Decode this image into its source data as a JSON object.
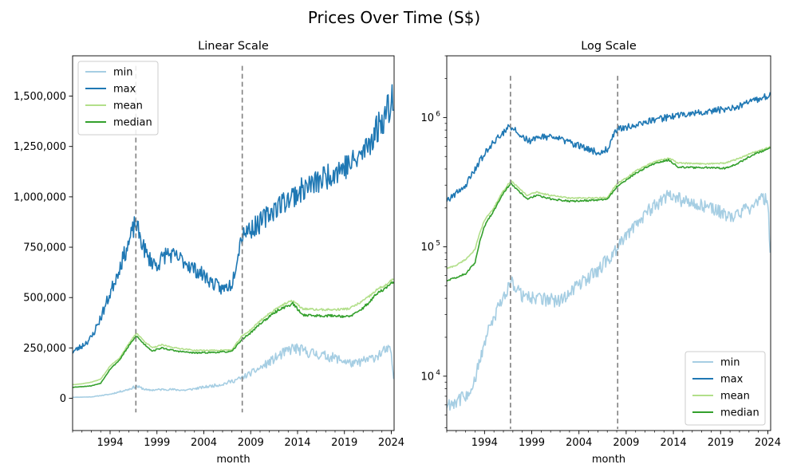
{
  "figure": {
    "suptitle": "Prices Over Time (S$)"
  },
  "colors": {
    "min": "#a6cee3",
    "max": "#1f78b4",
    "mean": "#b2df8a",
    "median": "#33a02c",
    "vline": "#808080"
  },
  "chart_data": [
    {
      "type": "line",
      "title": "Linear Scale",
      "xlabel": "month",
      "ylabel": "",
      "yscale": "linear",
      "xlim": [
        1990.0,
        2024.3
      ],
      "ylim": [
        -160000,
        1700000
      ],
      "xticks": [
        1994,
        1999,
        2004,
        2009,
        2014,
        2019,
        2024
      ],
      "xtick_labels": [
        "1994",
        "1999",
        "2004",
        "2009",
        "2014",
        "2019",
        "2024"
      ],
      "yticks": [
        0,
        250000,
        500000,
        750000,
        1000000,
        1250000,
        1500000
      ],
      "ytick_labels": [
        "0",
        "250,000",
        "500,000",
        "750,000",
        "1,000,000",
        "1,250,000",
        "1,500,000"
      ],
      "vlines": [
        {
          "x": 1996.75,
          "ymin": -70000,
          "ymax": 1650000
        },
        {
          "x": 2008.1,
          "ymin": -70000,
          "ymax": 1650000
        }
      ],
      "legend": {
        "position": "top-left"
      },
      "series": [
        {
          "name": "min",
          "key": "min",
          "x": [
            1990,
            1992,
            1994,
            1996,
            1996.8,
            1998,
            2000,
            2002,
            2004,
            2006,
            2008,
            2010,
            2012,
            2013.5,
            2015,
            2018,
            2020,
            2022,
            2023.5,
            2024.0,
            2024.2
          ],
          "y": [
            5000,
            7000,
            20000,
            45000,
            60000,
            40000,
            45000,
            40000,
            55000,
            70000,
            100000,
            150000,
            210000,
            250000,
            230000,
            200000,
            170000,
            200000,
            240000,
            230000,
            100000
          ]
        },
        {
          "name": "max",
          "key": "max",
          "x": [
            1990,
            1991,
            1992,
            1993,
            1994,
            1995,
            1996,
            1996.7,
            1997.5,
            1998,
            1999,
            2000,
            2001,
            2002,
            2003,
            2004,
            2005,
            2006,
            2007,
            2007.8,
            2008.2,
            2009,
            2010,
            2011,
            2012,
            2013,
            2014,
            2015,
            2016,
            2017,
            2018,
            2019,
            2020,
            2021,
            2022,
            2023,
            2023.8,
            2024.2
          ],
          "y": [
            230000,
            260000,
            300000,
            400000,
            520000,
            650000,
            770000,
            870000,
            760000,
            700000,
            660000,
            720000,
            700000,
            680000,
            640000,
            610000,
            570000,
            540000,
            570000,
            760000,
            830000,
            840000,
            870000,
            920000,
            960000,
            990000,
            1020000,
            1050000,
            1070000,
            1100000,
            1130000,
            1150000,
            1170000,
            1220000,
            1300000,
            1380000,
            1450000,
            1520000
          ]
        },
        {
          "name": "mean",
          "key": "mean",
          "x": [
            1990,
            1991,
            1992,
            1993,
            1994,
            1995,
            1996,
            1996.8,
            1997.5,
            1998.5,
            1999.5,
            2001,
            2003,
            2005,
            2007,
            2008,
            2009,
            2010,
            2011,
            2012,
            2013,
            2013.5,
            2014.5,
            2016,
            2018,
            2019.5,
            2020.5,
            2021.5,
            2022.5,
            2023.5,
            2024.2
          ],
          "y": [
            68000,
            72000,
            80000,
            95000,
            160000,
            200000,
            270000,
            325000,
            290000,
            250000,
            265000,
            250000,
            238000,
            238000,
            240000,
            305000,
            340000,
            385000,
            420000,
            455000,
            475000,
            485000,
            445000,
            440000,
            440000,
            445000,
            470000,
            500000,
            540000,
            565000,
            590000
          ]
        },
        {
          "name": "median",
          "key": "median",
          "x": [
            1990,
            1991,
            1992,
            1993,
            1994,
            1995,
            1996,
            1996.8,
            1997.5,
            1998.5,
            1999.5,
            2001,
            2003,
            2005,
            2007,
            2008,
            2009,
            2010,
            2011,
            2012,
            2013,
            2013.5,
            2014.5,
            2016,
            2018,
            2019.5,
            2020.5,
            2021.5,
            2022.5,
            2023.5,
            2024.2
          ],
          "y": [
            55000,
            58000,
            62000,
            75000,
            145000,
            190000,
            260000,
            310000,
            275000,
            235000,
            250000,
            235000,
            225000,
            228000,
            232000,
            290000,
            325000,
            370000,
            405000,
            440000,
            460000,
            470000,
            415000,
            410000,
            410000,
            405000,
            430000,
            470000,
            520000,
            550000,
            575000
          ]
        }
      ]
    },
    {
      "type": "line",
      "title": "Log Scale",
      "xlabel": "month",
      "ylabel": "",
      "yscale": "log",
      "xlim": [
        1990.0,
        2024.3
      ],
      "ylim": [
        3800,
        3000000
      ],
      "xticks": [
        1994,
        1999,
        2004,
        2009,
        2014,
        2019,
        2024
      ],
      "xtick_labels": [
        "1994",
        "1999",
        "2004",
        "2009",
        "2014",
        "2019",
        "2024"
      ],
      "yticks": [
        10000,
        100000,
        1000000
      ],
      "ytick_labels": [
        "10",
        "10",
        "10"
      ],
      "ytick_exponents": [
        "4",
        "5",
        "6"
      ],
      "vlines": [
        {
          "x": 1996.75,
          "ymin": 3900,
          "ymax": 2100000
        },
        {
          "x": 2008.1,
          "ymin": 3900,
          "ymax": 2100000
        }
      ],
      "legend": {
        "position": "lower-right"
      },
      "series": [
        {
          "name": "min",
          "key": "min",
          "x": [
            1990,
            1991,
            1992,
            1993,
            1994,
            1995,
            1996,
            1996.8,
            1998,
            2000,
            2002,
            2004,
            2006,
            2008,
            2010,
            2012,
            2013.5,
            2015,
            2018,
            2020,
            2022,
            2023.5,
            2024.0,
            2024.2
          ],
          "y": [
            6000,
            6500,
            7000,
            9000,
            18000,
            28000,
            40000,
            55000,
            42000,
            40000,
            38000,
            52000,
            65000,
            95000,
            150000,
            210000,
            250000,
            230000,
            200000,
            170000,
            200000,
            240000,
            230000,
            100000
          ]
        },
        {
          "name": "max",
          "key": "max",
          "x": [
            1990,
            1991,
            1992,
            1993,
            1994,
            1995,
            1996,
            1996.7,
            1997.5,
            1998,
            1999,
            2000,
            2001,
            2002,
            2003,
            2004,
            2005,
            2006,
            2007,
            2007.8,
            2008.2,
            2009,
            2010,
            2011,
            2012,
            2013,
            2014,
            2015,
            2016,
            2017,
            2018,
            2019,
            2020,
            2021,
            2022,
            2023,
            2023.8,
            2024.2
          ],
          "y": [
            230000,
            260000,
            300000,
            400000,
            520000,
            650000,
            770000,
            870000,
            760000,
            700000,
            660000,
            720000,
            700000,
            680000,
            640000,
            610000,
            570000,
            540000,
            570000,
            760000,
            830000,
            840000,
            870000,
            920000,
            960000,
            990000,
            1020000,
            1050000,
            1070000,
            1100000,
            1130000,
            1150000,
            1170000,
            1220000,
            1300000,
            1380000,
            1450000,
            1520000
          ]
        },
        {
          "name": "mean",
          "key": "mean",
          "x": [
            1990,
            1991,
            1992,
            1993,
            1994,
            1995,
            1996,
            1996.8,
            1997.5,
            1998.5,
            1999.5,
            2001,
            2003,
            2005,
            2007,
            2008,
            2009,
            2010,
            2011,
            2012,
            2013,
            2013.5,
            2014.5,
            2016,
            2018,
            2019.5,
            2020.5,
            2021.5,
            2022.5,
            2023.5,
            2024.2
          ],
          "y": [
            68000,
            72000,
            80000,
            95000,
            160000,
            200000,
            270000,
            325000,
            290000,
            250000,
            265000,
            250000,
            238000,
            238000,
            240000,
            305000,
            340000,
            385000,
            420000,
            455000,
            475000,
            485000,
            445000,
            440000,
            440000,
            445000,
            470000,
            500000,
            540000,
            565000,
            590000
          ]
        },
        {
          "name": "median",
          "key": "median",
          "x": [
            1990,
            1991,
            1992,
            1993,
            1994,
            1995,
            1996,
            1996.8,
            1997.5,
            1998.5,
            1999.5,
            2001,
            2003,
            2005,
            2007,
            2008,
            2009,
            2010,
            2011,
            2012,
            2013,
            2013.5,
            2014.5,
            2016,
            2018,
            2019.5,
            2020.5,
            2021.5,
            2022.5,
            2023.5,
            2024.2
          ],
          "y": [
            55000,
            58000,
            62000,
            75000,
            145000,
            190000,
            260000,
            310000,
            275000,
            235000,
            250000,
            235000,
            225000,
            228000,
            232000,
            290000,
            325000,
            370000,
            405000,
            440000,
            460000,
            470000,
            415000,
            410000,
            410000,
            405000,
            430000,
            470000,
            520000,
            550000,
            575000
          ]
        }
      ]
    }
  ]
}
